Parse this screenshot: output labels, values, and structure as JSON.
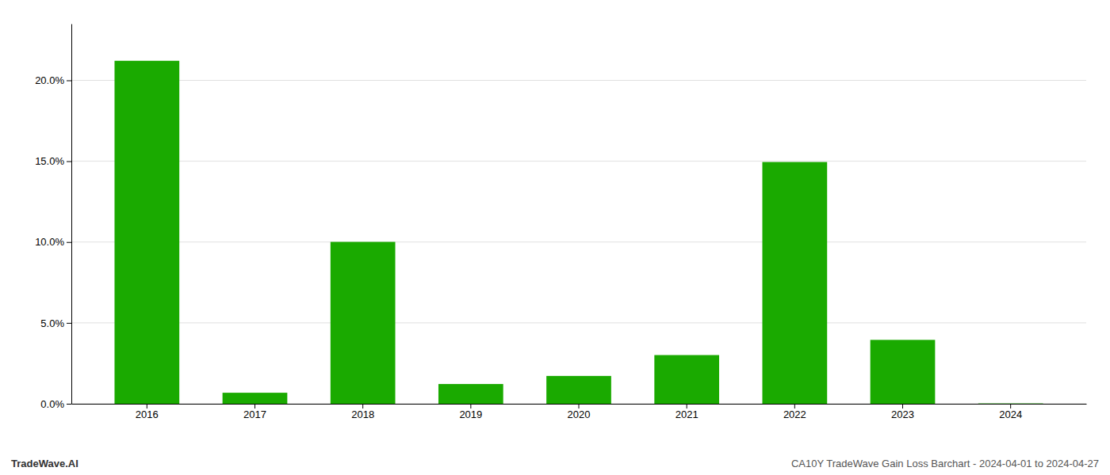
{
  "chart_data": {
    "type": "bar",
    "categories": [
      "2016",
      "2017",
      "2018",
      "2019",
      "2020",
      "2021",
      "2022",
      "2023",
      "2024"
    ],
    "values": [
      0.2121,
      0.0068,
      0.1001,
      0.0122,
      0.0172,
      0.0301,
      0.1495,
      0.0395,
      0.0002
    ],
    "color": "#1aaa00",
    "ylim": [
      0,
      0.235
    ],
    "yticks": [
      {
        "value": 0.0,
        "label": "0.0%"
      },
      {
        "value": 0.05,
        "label": "5.0%"
      },
      {
        "value": 0.1,
        "label": "10.0%"
      },
      {
        "value": 0.15,
        "label": "15.0%"
      },
      {
        "value": 0.2,
        "label": "20.0%"
      }
    ],
    "grid": true,
    "annotations": [
      "TradeWave.AI",
      "CA10Y TradeWave Gain Loss Barchart - 2024-04-01 to 2024-04-27"
    ]
  }
}
